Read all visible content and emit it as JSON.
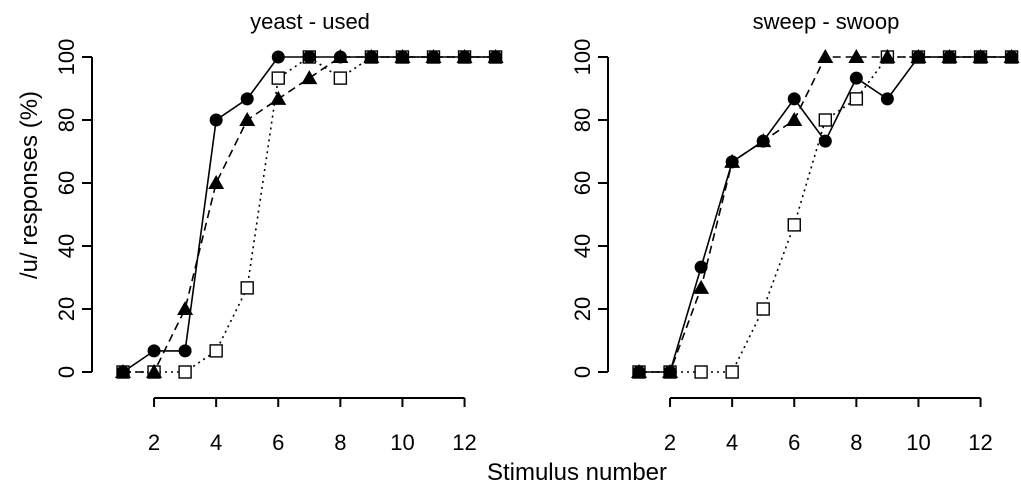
{
  "chart_data": {
    "type": "line",
    "xlabel": "Stimulus number",
    "ylabel": "/u/ responses (%)",
    "x_ticks": [
      2,
      4,
      6,
      8,
      10,
      12
    ],
    "y_ticks": [
      0,
      20,
      40,
      60,
      80,
      100
    ],
    "xlim": [
      1,
      13
    ],
    "ylim": [
      0,
      100
    ],
    "grid": false,
    "legend": "none",
    "panels": [
      {
        "title": "yeast - used",
        "series": [
          {
            "marker": "filled-circle",
            "line": "solid",
            "x": [
              1,
              2,
              3,
              4,
              5,
              6,
              7,
              8,
              9,
              10,
              11,
              12,
              13
            ],
            "y": [
              0,
              6.7,
              6.7,
              80,
              86.7,
              100,
              100,
              100,
              100,
              100,
              100,
              100,
              100
            ]
          },
          {
            "marker": "filled-triangle",
            "line": "dashed",
            "x": [
              1,
              2,
              3,
              4,
              5,
              6,
              7,
              8,
              9,
              10,
              11,
              12,
              13
            ],
            "y": [
              0,
              0,
              20,
              60,
              80,
              86.7,
              93.3,
              100,
              100,
              100,
              100,
              100,
              100
            ]
          },
          {
            "marker": "open-square",
            "line": "dotted",
            "x": [
              1,
              2,
              3,
              4,
              5,
              6,
              7,
              8,
              9,
              10,
              11,
              12,
              13
            ],
            "y": [
              0,
              0,
              0,
              6.7,
              26.7,
              93.3,
              100,
              93.3,
              100,
              100,
              100,
              100,
              100
            ]
          }
        ]
      },
      {
        "title": "sweep - swoop",
        "series": [
          {
            "marker": "filled-circle",
            "line": "solid",
            "x": [
              1,
              2,
              3,
              4,
              5,
              6,
              7,
              8,
              9,
              10,
              11,
              12,
              13
            ],
            "y": [
              0,
              0,
              33.3,
              66.7,
              73.3,
              86.7,
              73.3,
              93.3,
              86.7,
              100,
              100,
              100,
              100
            ]
          },
          {
            "marker": "filled-triangle",
            "line": "dashed",
            "x": [
              1,
              2,
              3,
              4,
              5,
              6,
              7,
              8,
              9,
              10,
              11,
              12,
              13
            ],
            "y": [
              0,
              0,
              26.7,
              66.7,
              73.3,
              80,
              100,
              100,
              100,
              100,
              100,
              100,
              100
            ]
          },
          {
            "marker": "open-square",
            "line": "dotted",
            "x": [
              1,
              2,
              3,
              4,
              5,
              6,
              7,
              8,
              9,
              10,
              11,
              12,
              13
            ],
            "y": [
              0,
              0,
              0,
              0,
              20,
              46.7,
              80,
              86.7,
              100,
              100,
              100,
              100,
              100
            ]
          }
        ]
      }
    ]
  }
}
